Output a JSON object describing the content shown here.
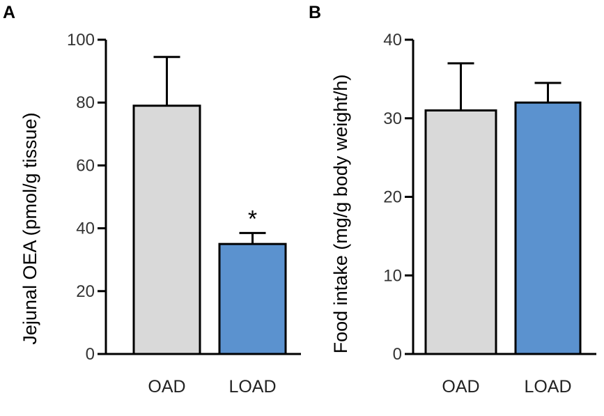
{
  "chart_data": [
    {
      "type": "bar",
      "panel": "A",
      "categories": [
        "OAD",
        "LOAD"
      ],
      "values": [
        79,
        35
      ],
      "errors": [
        15.5,
        3.5
      ],
      "colors": [
        "#d9d9d9",
        "#5b92cf"
      ],
      "annotations": [
        "",
        "*"
      ],
      "title": "",
      "xlabel": "",
      "ylabel": "Jejunal  OEA (pmol/g tissue)",
      "ylim": [
        0,
        100
      ],
      "yticks": [
        0,
        20,
        40,
        60,
        80,
        100
      ]
    },
    {
      "type": "bar",
      "panel": "B",
      "categories": [
        "OAD",
        "LOAD"
      ],
      "values": [
        31,
        32
      ],
      "errors": [
        6,
        2.5
      ],
      "colors": [
        "#d9d9d9",
        "#5b92cf"
      ],
      "annotations": [
        "",
        ""
      ],
      "title": "",
      "xlabel": "",
      "ylabel": "Food intake (mg/g body weight/h)",
      "ylim": [
        0,
        40
      ],
      "yticks": [
        0,
        10,
        20,
        30,
        40
      ]
    }
  ]
}
